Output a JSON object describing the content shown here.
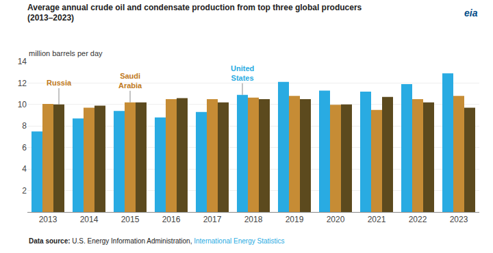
{
  "chart_data": {
    "type": "bar",
    "title": "Average annual crude oil and condensate production from top three global producers",
    "subtitle": "(2013–2023)",
    "ylabel": "million barrels per day",
    "logo": "eia",
    "categories": [
      "2013",
      "2014",
      "2015",
      "2016",
      "2017",
      "2018",
      "2019",
      "2020",
      "2021",
      "2022",
      "2023"
    ],
    "series": [
      {
        "color": "#29ABE2",
        "values": [
          7.5,
          8.7,
          9.4,
          8.8,
          9.3,
          10.9,
          12.1,
          11.3,
          11.2,
          11.9,
          12.9
        ]
      },
      {
        "color": "#C68C35",
        "values": [
          10.05,
          9.7,
          10.2,
          10.5,
          10.5,
          10.65,
          10.8,
          9.98,
          9.5,
          10.5,
          10.8
        ]
      },
      {
        "color": "#5C4A1E",
        "values": [
          10.0,
          9.9,
          10.2,
          10.6,
          10.2,
          10.5,
          10.5,
          10.0,
          10.7,
          10.2,
          9.7
        ]
      }
    ],
    "ylim": [
      0,
      14
    ],
    "yticks": [
      2,
      4,
      6,
      8,
      10,
      12,
      14
    ],
    "grid": true,
    "annotations": [
      {
        "text": "Russia",
        "category": "2013",
        "series": 2,
        "color": "#C07820"
      },
      {
        "text": "Saudi\nArabia",
        "category": "2015",
        "series": 1,
        "color": "#C07820"
      },
      {
        "text": "United\nStates",
        "category": "2018",
        "series": 0,
        "color": "#29ABE2"
      }
    ],
    "footer": {
      "label": "Data source:",
      "text": "U.S. Energy Information Administration, ",
      "link": "International Energy Statistics",
      "link_color": "#29ABE2"
    }
  }
}
